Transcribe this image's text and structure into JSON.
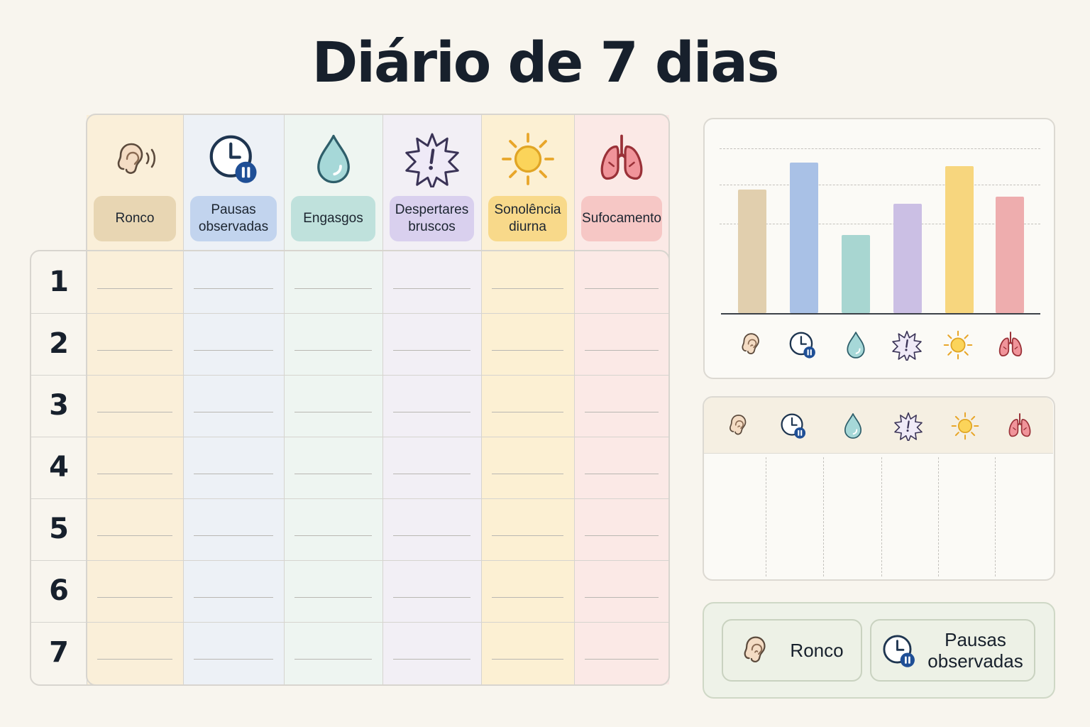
{
  "title": "Diário de 7 dias",
  "columns": [
    {
      "key": "ronco",
      "label": "Ronco",
      "icon": "ear-icon",
      "color": "#e8d6b3",
      "tint": "#faefd9"
    },
    {
      "key": "pausas",
      "label": "Pausas observadas",
      "icon": "clock-pause-icon",
      "color": "#c2d4ee",
      "tint": "#edf1f6"
    },
    {
      "key": "engasgos",
      "label": "Engasgos",
      "icon": "water-drop-icon",
      "color": "#bfe1dc",
      "tint": "#eef5f1"
    },
    {
      "key": "despertares",
      "label": "Despertares bruscos",
      "icon": "alert-burst-icon",
      "color": "#d9d0ee",
      "tint": "#f2eff5"
    },
    {
      "key": "sonolencia",
      "label": "Sonolência diurna",
      "icon": "sun-icon",
      "color": "#f8d98a",
      "tint": "#fcf0d3"
    },
    {
      "key": "sufocamento",
      "label": "Sufocamento",
      "icon": "lungs-icon",
      "color": "#f6c7c5",
      "tint": "#fbe9e6"
    }
  ],
  "days": [
    "1",
    "2",
    "3",
    "4",
    "5",
    "6",
    "7"
  ],
  "chart_data": {
    "type": "bar",
    "categories": [
      "Ronco",
      "Pausas observadas",
      "Engasgos",
      "Despertares bruscos",
      "Sonolência diurna",
      "Sufocamento"
    ],
    "values": [
      0.68,
      0.83,
      0.43,
      0.6,
      0.81,
      0.64
    ],
    "colors": [
      "#e1cfae",
      "#a9c1e6",
      "#a8d6d1",
      "#cbbfe4",
      "#f7d67e",
      "#eeadae"
    ],
    "ylim": [
      0,
      1
    ],
    "gridlines": [
      0.5,
      0.75,
      1.0
    ],
    "grid": true,
    "title": "",
    "xlabel": "",
    "ylabel": ""
  },
  "legend": [
    {
      "label": "Ronco",
      "icon": "ear-icon"
    },
    {
      "label": "Pausas observadas",
      "icon": "clock-pause-icon"
    }
  ]
}
